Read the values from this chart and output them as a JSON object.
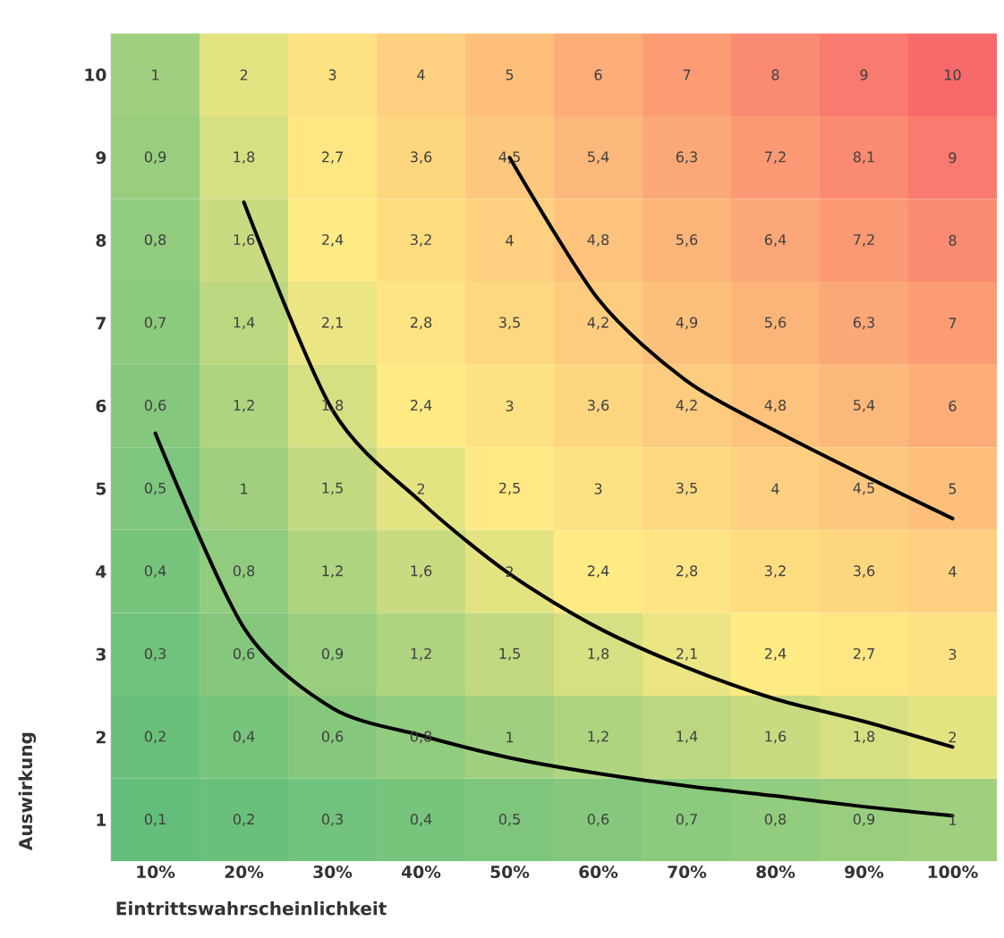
{
  "chart_data": {
    "type": "heatmap",
    "xlabel": "Eintrittswahrscheinlichkeit",
    "ylabel": "Auswirkung",
    "categories": [
      "10%",
      "20%",
      "30%",
      "40%",
      "50%",
      "60%",
      "70%",
      "80%",
      "90%",
      "100%"
    ],
    "ylim": [
      0.5,
      10.5
    ],
    "yticks": [
      1,
      2,
      3,
      4,
      5,
      6,
      7,
      8,
      9,
      10
    ],
    "cells": [
      [
        1,
        2,
        3,
        4,
        5,
        6,
        7,
        8,
        9,
        10
      ],
      [
        0.9,
        1.8,
        2.7,
        3.6,
        4.5,
        5.4,
        6.3,
        7.2,
        8.1,
        9
      ],
      [
        0.8,
        1.6,
        2.4,
        3.2,
        4,
        4.8,
        5.6,
        6.4,
        7.2,
        8
      ],
      [
        0.7,
        1.4,
        2.1,
        2.8,
        3.5,
        4.2,
        4.9,
        5.6,
        6.3,
        7
      ],
      [
        0.6,
        1.2,
        1.8,
        2.4,
        3,
        3.6,
        4.2,
        4.8,
        5.4,
        6
      ],
      [
        0.5,
        1,
        1.5,
        2,
        2.5,
        3,
        3.5,
        4,
        4.5,
        5
      ],
      [
        0.4,
        0.8,
        1.2,
        1.6,
        2,
        2.4,
        2.8,
        3.2,
        3.6,
        4
      ],
      [
        0.3,
        0.6,
        0.9,
        1.2,
        1.5,
        1.8,
        2.1,
        2.4,
        2.7,
        3
      ],
      [
        0.2,
        0.4,
        0.6,
        0.8,
        1,
        1.2,
        1.4,
        1.6,
        1.8,
        2
      ],
      [
        0.1,
        0.2,
        0.3,
        0.4,
        0.5,
        0.6,
        0.7,
        0.8,
        0.9,
        1
      ]
    ],
    "cell_labels": [
      [
        "1",
        "2",
        "3",
        "4",
        "5",
        "6",
        "7",
        "8",
        "9",
        "10"
      ],
      [
        "0,9",
        "1,8",
        "2,7",
        "3,6",
        "4,5",
        "5,4",
        "6,3",
        "7,2",
        "8,1",
        "9"
      ],
      [
        "0,8",
        "1,6",
        "2,4",
        "3,2",
        "4",
        "4,8",
        "5,6",
        "6,4",
        "7,2",
        "8"
      ],
      [
        "0,7",
        "1,4",
        "2,1",
        "2,8",
        "3,5",
        "4,2",
        "4,9",
        "5,6",
        "6,3",
        "7"
      ],
      [
        "0,6",
        "1,2",
        "1,8",
        "2,4",
        "3",
        "3,6",
        "4,2",
        "4,8",
        "5,4",
        "6"
      ],
      [
        "0,5",
        "1",
        "1,5",
        "2",
        "2,5",
        "3",
        "3,5",
        "4",
        "4,5",
        "5"
      ],
      [
        "0,4",
        "0,8",
        "1,2",
        "1,6",
        "2",
        "2,4",
        "2,8",
        "3,2",
        "3,6",
        "4"
      ],
      [
        "0,3",
        "0,6",
        "0,9",
        "1,2",
        "1,5",
        "1,8",
        "2,1",
        "2,4",
        "2,7",
        "3"
      ],
      [
        "0,2",
        "0,4",
        "0,6",
        "0,8",
        "1",
        "1,2",
        "1,4",
        "1,6",
        "1,8",
        "2"
      ],
      [
        "0,1",
        "0,2",
        "0,3",
        "0,4",
        "0,5",
        "0,6",
        "0,7",
        "0,8",
        "0,9",
        "1"
      ]
    ],
    "series": [
      {
        "type": "line",
        "color": "#000000",
        "values": [
          5.67,
          3.32,
          2.35,
          2.02,
          1.75,
          1.56,
          1.41,
          1.29,
          1.16,
          1.05
        ]
      },
      {
        "type": "line",
        "color": "#000000",
        "values": [
          null,
          8.46,
          5.95,
          4.84,
          3.97,
          3.32,
          2.84,
          2.46,
          2.19,
          1.88
        ]
      },
      {
        "type": "line",
        "color": "#000000",
        "values": [
          null,
          null,
          null,
          null,
          9.0,
          7.29,
          6.3,
          5.7,
          5.16,
          4.64
        ]
      }
    ]
  }
}
